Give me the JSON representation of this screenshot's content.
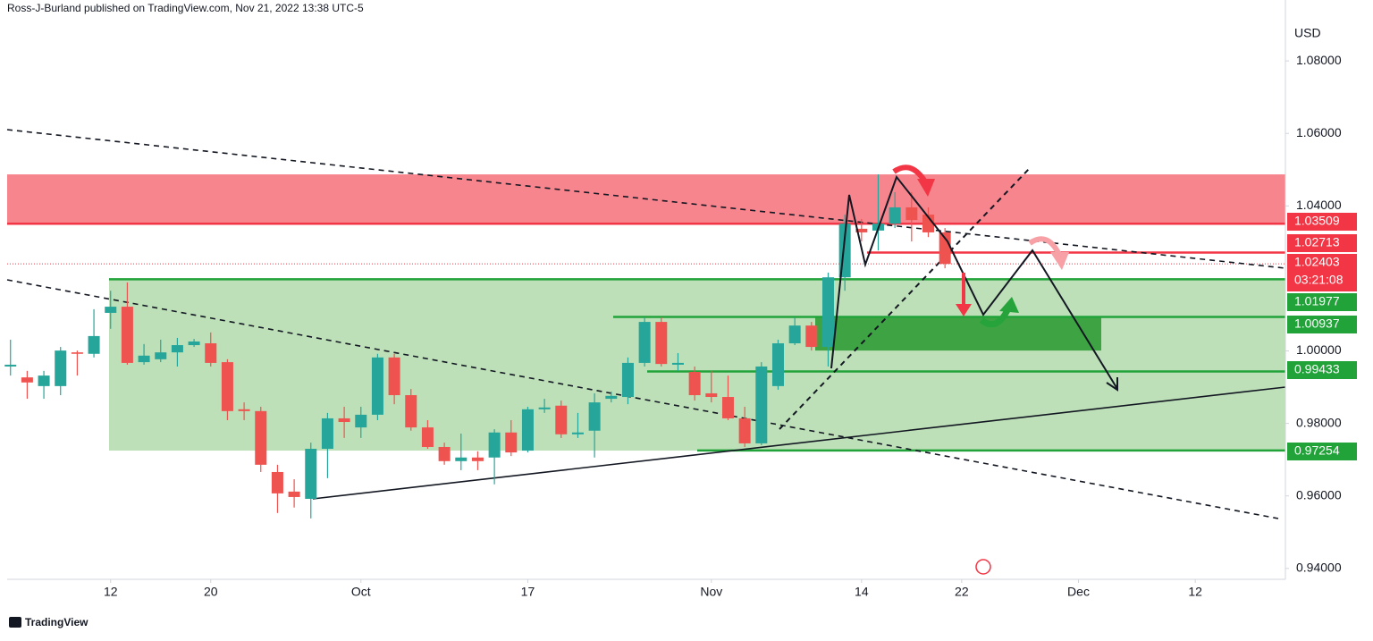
{
  "header": "Ross-J-Burland published on TradingView.com, Nov 21, 2022 13:38 UTC-5",
  "footer": "TradingView",
  "chart_data": {
    "type": "candlestick",
    "currency": "USD",
    "x": [
      0,
      1,
      2,
      3,
      4,
      5,
      6,
      7,
      8,
      9,
      10,
      11,
      12,
      13,
      14,
      15,
      16,
      17,
      18,
      19,
      20,
      21,
      22,
      23,
      24,
      25,
      26,
      27,
      28,
      29,
      30,
      31,
      32,
      33,
      34,
      35,
      36,
      37,
      38,
      39,
      40,
      41,
      42,
      43,
      44,
      45,
      46,
      47,
      48,
      49,
      50,
      51,
      52,
      53,
      54,
      55,
      56
    ],
    "open": [
      0.9957,
      0.9927,
      0.9903,
      0.9903,
      0.9996,
      0.9992,
      1.0105,
      1.0122,
      0.9969,
      0.9977,
      0.9996,
      1.0016,
      1.0021,
      0.9969,
      0.9839,
      0.9834,
      0.9666,
      0.9612,
      0.9592,
      0.973,
      0.9814,
      0.9789,
      0.9824,
      0.9982,
      0.9878,
      0.9789,
      0.9735,
      0.9696,
      0.9706,
      0.9706,
      0.9775,
      0.9725,
      0.9839,
      0.9849,
      0.977,
      0.978,
      0.9868,
      0.9873,
      0.9967,
      1.008,
      0.9962,
      0.9942,
      0.9883,
      0.9873,
      0.9814,
      0.9745,
      0.9903,
      1.0021,
      1.007,
      1.0011,
      1.0203,
      1.0337,
      1.0332,
      1.0351,
      1.0396,
      1.0376,
      1.0327
    ],
    "high": [
      1.0031,
      0.9945,
      0.9945,
      1.0011,
      1.0001,
      1.0115,
      1.0166,
      1.0189,
      1.0019,
      1.0031,
      1.0036,
      1.0033,
      1.0051,
      0.9977,
      0.9858,
      0.9846,
      0.9686,
      0.9646,
      0.9747,
      0.9829,
      0.9846,
      0.9846,
      0.9992,
      0.9992,
      0.9895,
      0.9809,
      0.9747,
      0.9772,
      0.9723,
      0.9784,
      0.9809,
      0.9846,
      0.9868,
      0.9863,
      0.9829,
      0.9883,
      0.9888,
      0.9982,
      1.0093,
      1.0093,
      0.9994,
      0.9957,
      0.9945,
      0.9932,
      0.9846,
      0.9969,
      1.0031,
      1.0093,
      1.008,
      1.0216,
      1.0376,
      1.0364,
      1.0487,
      1.0438,
      1.0438,
      1.0396,
      1.0339
    ],
    "low": [
      0.9932,
      0.9868,
      0.9868,
      0.9878,
      0.9932,
      0.9982,
      1.0061,
      0.9962,
      0.9962,
      0.9969,
      0.9957,
      1.0011,
      0.9957,
      0.9809,
      0.9809,
      0.9666,
      0.9553,
      0.9568,
      0.9538,
      0.9649,
      0.976,
      0.976,
      0.9809,
      0.9853,
      0.978,
      0.973,
      0.9686,
      0.9671,
      0.9671,
      0.9632,
      0.971,
      0.972,
      0.9829,
      0.976,
      0.976,
      0.9706,
      0.9858,
      0.9853,
      0.9957,
      0.9957,
      0.9945,
      0.9863,
      0.9858,
      0.9809,
      0.9735,
      0.974,
      0.9893,
      1.0016,
      1.0001,
      0.9957,
      1.0166,
      1.0302,
      1.0277,
      1.0339,
      1.0302,
      1.0314,
      1.0228
    ],
    "close": [
      0.9962,
      0.9913,
      0.9932,
      1.0001,
      0.9992,
      1.0041,
      1.0122,
      0.9967,
      0.9987,
      0.9996,
      1.0016,
      1.0026,
      0.9967,
      0.9834,
      0.9834,
      0.9686,
      0.9607,
      0.9597,
      0.973,
      0.9814,
      0.9804,
      0.9824,
      0.9982,
      0.9878,
      0.9789,
      0.9735,
      0.9696,
      0.9706,
      0.9696,
      0.9775,
      0.972,
      0.9839,
      0.9844,
      0.977,
      0.9775,
      0.9858,
      0.9876,
      0.9967,
      1.008,
      0.9964,
      0.9967,
      0.9878,
      0.9873,
      0.9814,
      0.9745,
      0.9957,
      1.0021,
      1.007,
      1.0011,
      1.0203,
      1.0351,
      1.0327,
      1.0351,
      1.0396,
      1.0361,
      1.0327,
      1.024
    ],
    "up_color": "#26a69a",
    "down_color": "#ef5350",
    "xlim": [
      -0.2,
      76.4
    ],
    "xticks": [
      {
        "value": 6,
        "label": "12"
      },
      {
        "value": 12,
        "label": "20"
      },
      {
        "value": 21,
        "label": "Oct"
      },
      {
        "value": 31,
        "label": "17"
      },
      {
        "value": 42,
        "label": "Nov"
      },
      {
        "value": 51,
        "label": "14"
      },
      {
        "value": 57,
        "label": "22"
      },
      {
        "value": 64,
        "label": "Dec"
      },
      {
        "value": 71,
        "label": "12"
      }
    ],
    "ylim": [
      0.937,
      1.0968
    ],
    "yticks": [
      {
        "value": 1.08,
        "label": "1.08000"
      },
      {
        "value": 1.06,
        "label": "1.06000"
      },
      {
        "value": 1.04,
        "label": "1.04000"
      },
      {
        "value": 1.0,
        "label": "1.00000"
      },
      {
        "value": 0.98,
        "label": "0.98000"
      },
      {
        "value": 0.96,
        "label": "0.96000"
      },
      {
        "value": 0.94,
        "label": "0.94000"
      }
    ],
    "zones": [
      {
        "top": 1.0487,
        "bottom": 1.0351,
        "color": "#f7858d"
      },
      {
        "top": 1.0199,
        "bottom": 0.9725,
        "color": "#bde0b8"
      },
      {
        "top": 1.0096,
        "bottom": 1.0001,
        "color": "#3ea443"
      }
    ],
    "levels": [
      {
        "value": 1.03509,
        "color": "#f23645"
      },
      {
        "value": 1.02713,
        "color": "#f23645"
      },
      {
        "value": 1.02403,
        "color": "#f23645"
      },
      {
        "value": 1.01977,
        "color": "#22a33a"
      },
      {
        "value": 1.00937,
        "color": "#22a33a"
      },
      {
        "value": 0.99433,
        "color": "#22a33a"
      },
      {
        "value": 0.97254,
        "color": "#22a33a"
      }
    ],
    "countdown": "03:21:08"
  }
}
